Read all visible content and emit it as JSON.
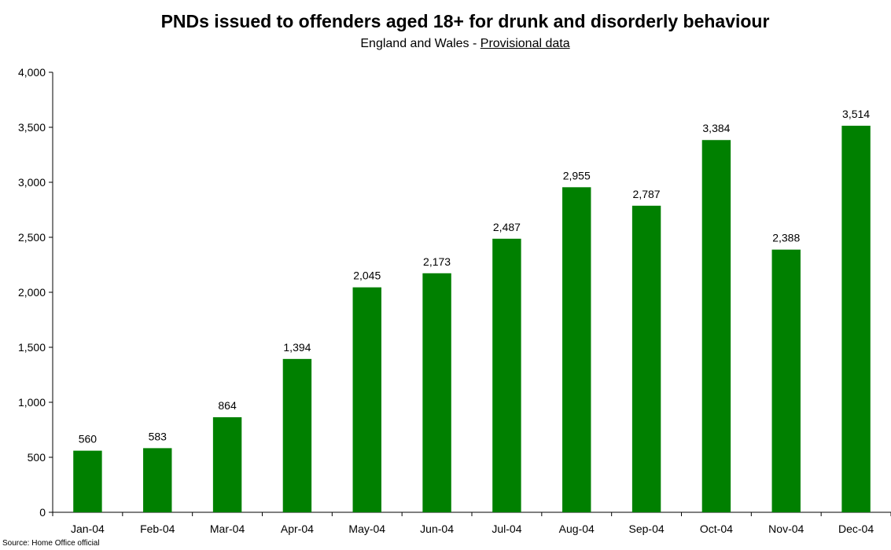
{
  "chart_data": {
    "type": "bar",
    "title": "PNDs issued to offenders aged 18+ for drunk and disorderly behaviour",
    "subtitle_prefix": "England and Wales - ",
    "subtitle_link": "Provisional data",
    "xlabel": "",
    "ylabel": "",
    "ylim": [
      0,
      4000
    ],
    "yticks": [
      0,
      500,
      1000,
      1500,
      2000,
      2500,
      3000,
      3500,
      4000
    ],
    "ytick_labels": [
      "0",
      "500",
      "1,000",
      "1,500",
      "2,000",
      "2,500",
      "3,000",
      "3,500",
      "4,000"
    ],
    "categories": [
      "Jan-04",
      "Feb-04",
      "Mar-04",
      "Apr-04",
      "May-04",
      "Jun-04",
      "Jul-04",
      "Aug-04",
      "Sep-04",
      "Oct-04",
      "Nov-04",
      "Dec-04"
    ],
    "values": [
      560,
      583,
      864,
      1394,
      2045,
      2173,
      2487,
      2955,
      2787,
      3384,
      2388,
      3514
    ],
    "data_labels": [
      "560",
      "583",
      "864",
      "1,394",
      "2,045",
      "2,173",
      "2,487",
      "2,955",
      "2,787",
      "3,384",
      "2,388",
      "3,514"
    ],
    "bar_color": "#008000",
    "grid": false,
    "legend": "none",
    "source": "Source: Home Office official"
  }
}
